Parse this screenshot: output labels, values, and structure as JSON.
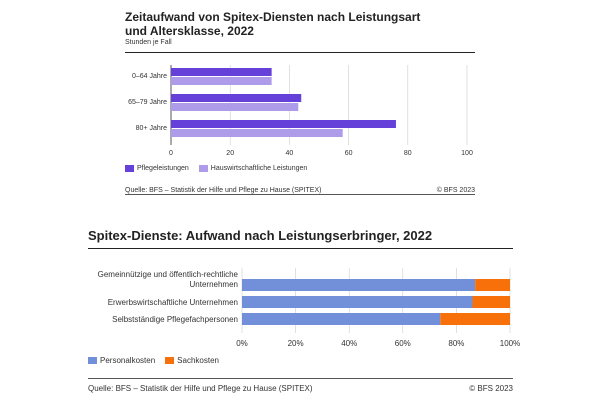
{
  "chart_data": [
    {
      "type": "bar",
      "orientation": "horizontal",
      "title": "Zeitaufwand von Spitex-Diensten nach Leistungsart und Altersklasse, 2022",
      "title_lines": [
        "Zeitaufwand von Spitex-Diensten nach Leistungsart",
        "und Altersklasse, 2022"
      ],
      "subtitle": "Stunden je Fall",
      "categories": [
        "0–64 Jahre",
        "65–79 Jahre",
        "80+ Jahre"
      ],
      "series": [
        {
          "name": "Pflegeleistungen",
          "values": [
            34,
            44,
            76
          ],
          "color": "#6641d9"
        },
        {
          "name": "Hauswirtschaftliche Leistungen",
          "values": [
            34,
            43,
            58
          ],
          "color": "#ae9ceb"
        }
      ],
      "xlim": [
        0,
        100
      ],
      "xticks": [
        "0",
        "20",
        "40",
        "60",
        "80",
        "100"
      ],
      "grid": true,
      "legend_position": "bottom-left",
      "source": "Quelle: BFS – Statistik der Hilfe und Pflege zu Hause (SPITEX)",
      "copyright": "© BFS 2023"
    },
    {
      "type": "bar",
      "orientation": "horizontal",
      "stacked": true,
      "title": "Spitex-Dienste: Aufwand nach Leistungserbringer, 2022",
      "categories": [
        "Gemeinnützige und öffentlich-rechtliche Unternehmen",
        "Erwerbswirtschaftliche Unternehmen",
        "Selbstständige Pflegefachpersonen"
      ],
      "category_lines": [
        [
          "Gemeinnützige und öffentlich-rechtliche",
          "Unternehmen"
        ],
        [
          "Erwerbswirtschaftliche Unternehmen"
        ],
        [
          "Selbstständige Pflegefachpersonen"
        ]
      ],
      "series": [
        {
          "name": "Personalkosten",
          "values": [
            87,
            86,
            74
          ],
          "color": "#7190d9"
        },
        {
          "name": "Sachkosten",
          "values": [
            13,
            14,
            26
          ],
          "color": "#f7700a"
        }
      ],
      "xlim": [
        0,
        100
      ],
      "xticks": [
        "0%",
        "20%",
        "40%",
        "60%",
        "80%",
        "100%"
      ],
      "grid": true,
      "legend_position": "bottom-left",
      "source": "Quelle: BFS – Statistik der Hilfe und Pflege zu Hause (SPITEX)",
      "copyright": "© BFS 2023"
    }
  ]
}
